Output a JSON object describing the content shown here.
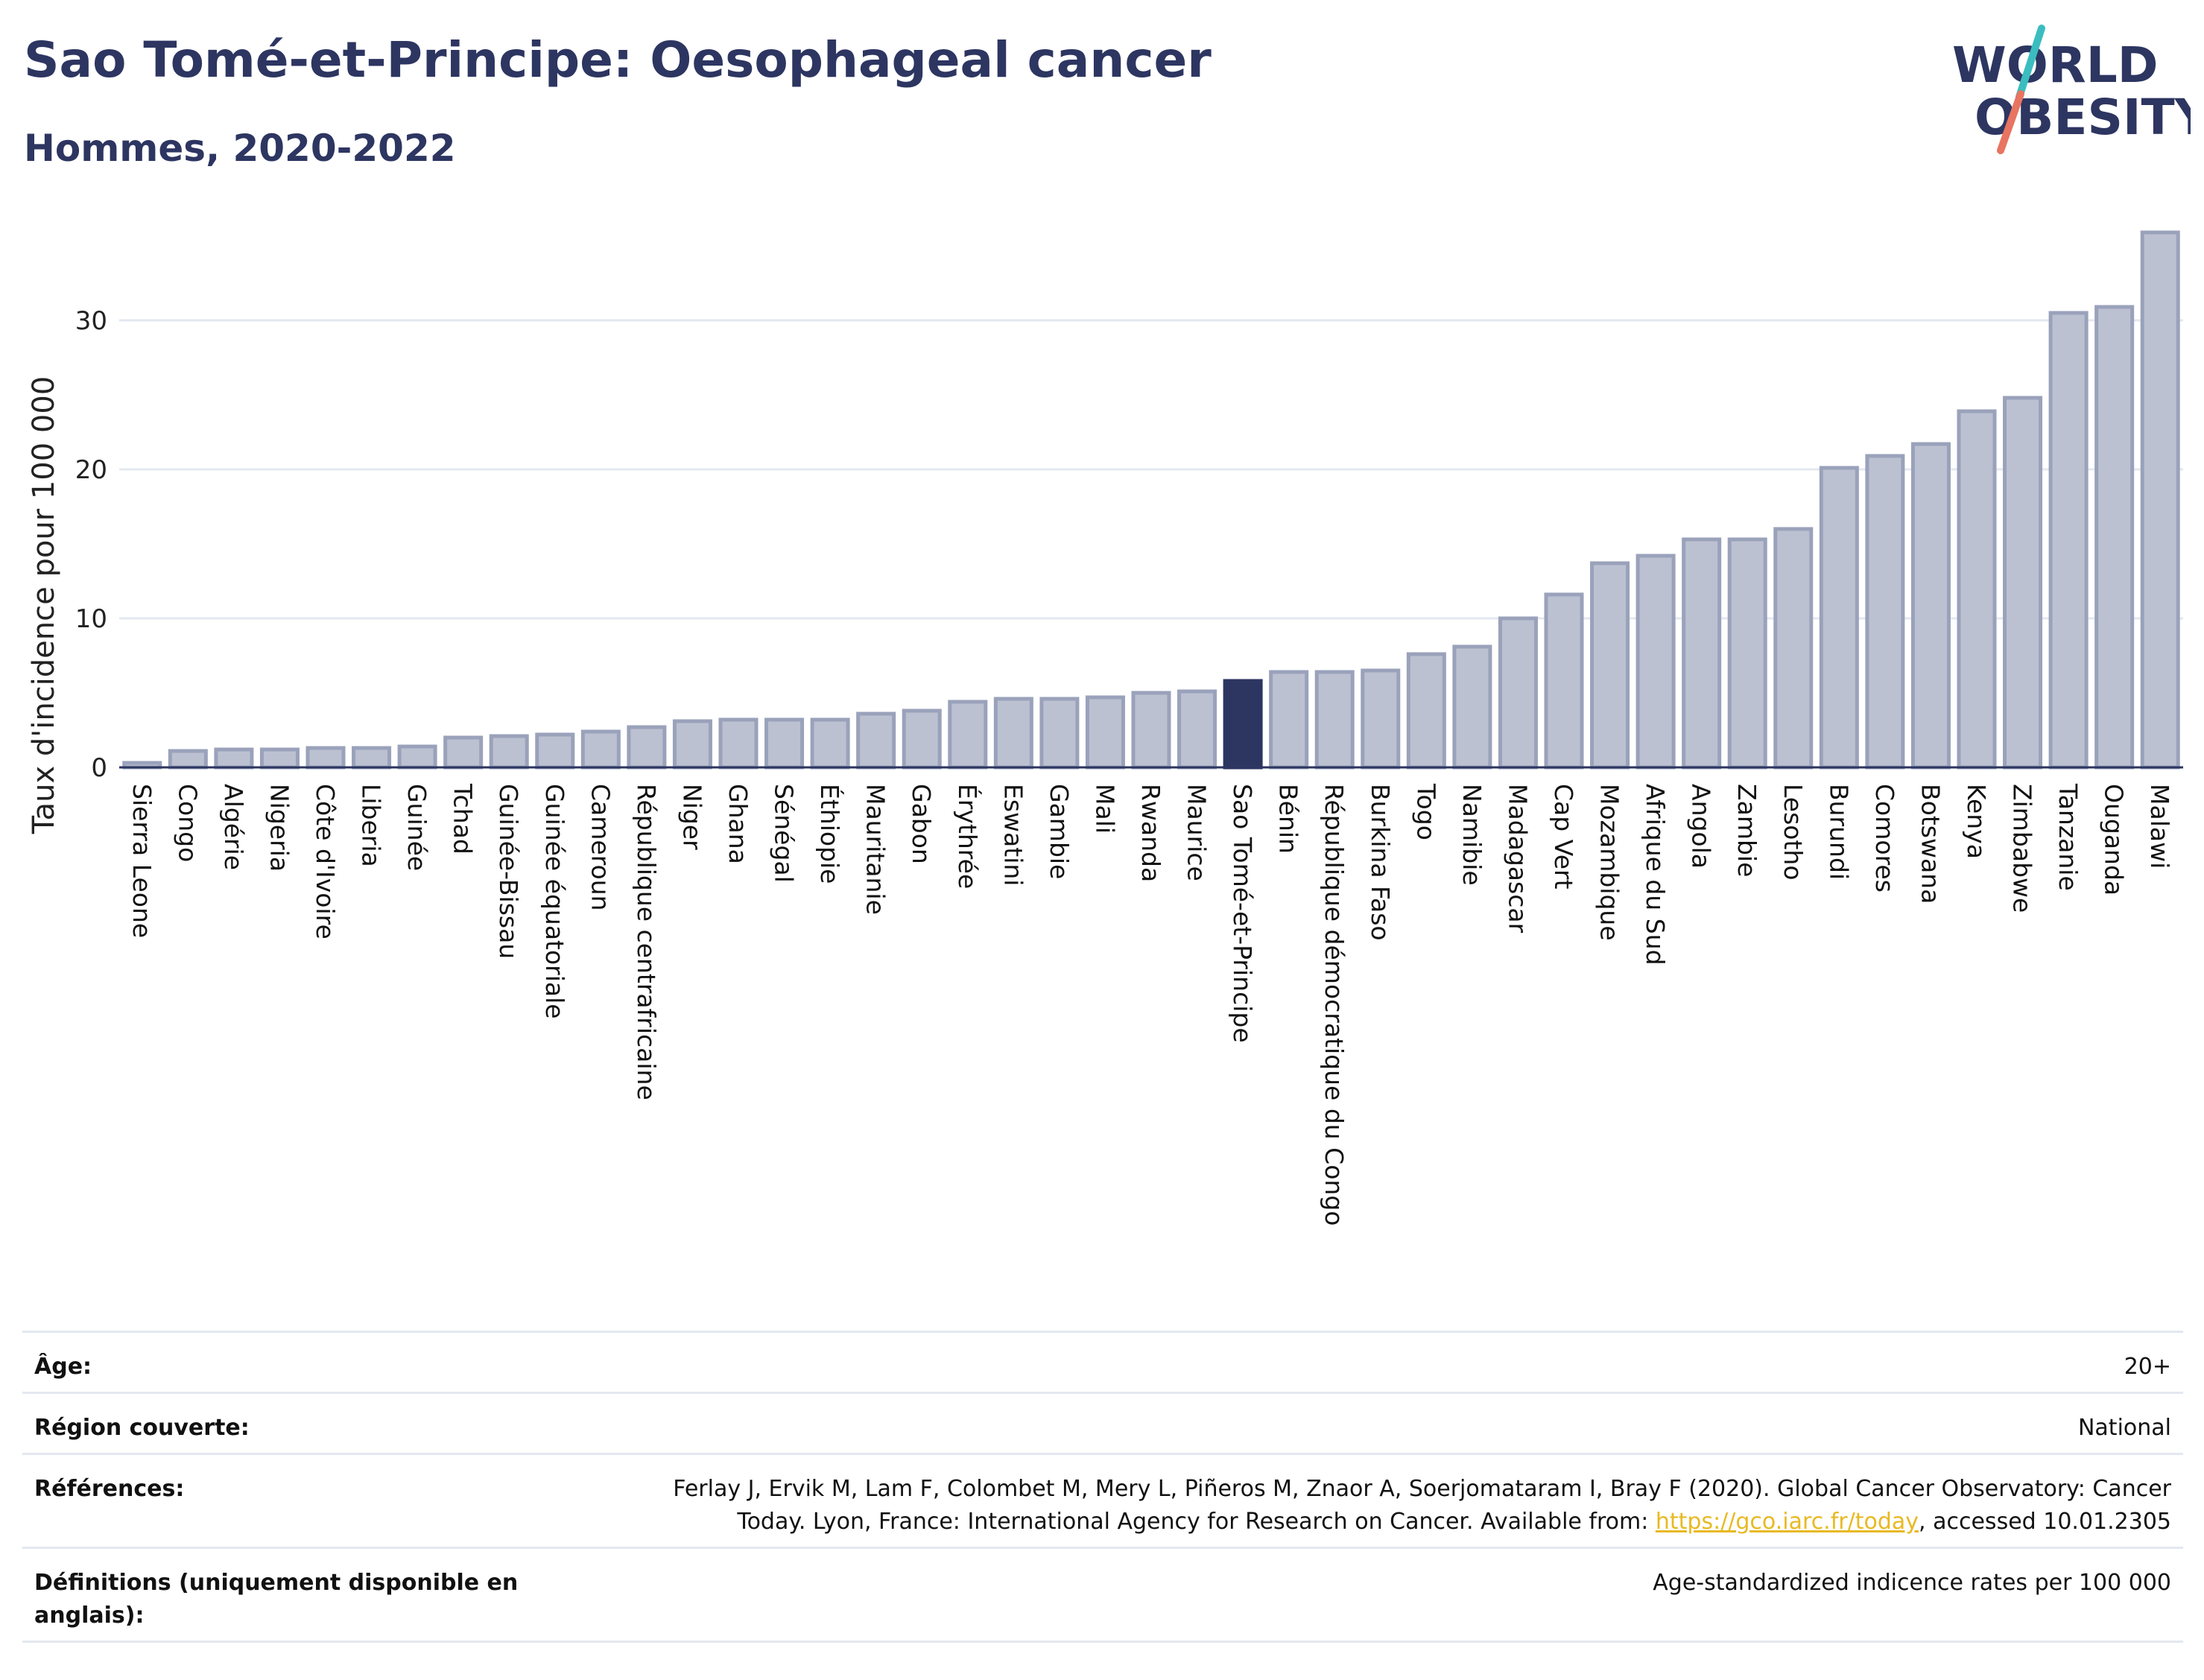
{
  "header": {
    "title": "Sao Tomé-et-Principe: Oesophageal cancer",
    "subtitle": "Hommes, 2020-2022"
  },
  "logo": {
    "line1": "WORLD",
    "line2": "OBESITY",
    "icon": "world-obesity-logo"
  },
  "colors": {
    "bar": "#bcc1d1",
    "bar_stroke": "#9aa2bb",
    "highlight": "#2d3561",
    "text": "#2d3561",
    "grid": "#e3e8f0",
    "link": "#e8b923"
  },
  "chart_data": {
    "type": "bar",
    "ylabel": "Taux d'incidence pour 100 000",
    "xlabel": "",
    "ylim": [
      0,
      36
    ],
    "yticks": [
      0,
      10,
      20,
      30
    ],
    "grid": true,
    "highlight": "Sao Tomé-et-Principe",
    "categories": [
      "Sierra Leone",
      "Congo",
      "Algérie",
      "Nigeria",
      "Côte d'Ivoire",
      "Liberia",
      "Guinée",
      "Tchad",
      "Guinée-Bissau",
      "Guinée équatoriale",
      "Cameroun",
      "République centrafricaine",
      "Niger",
      "Ghana",
      "Sénégal",
      "Éthiopie",
      "Mauritanie",
      "Gabon",
      "Érythrée",
      "Eswatini",
      "Gambie",
      "Mali",
      "Rwanda",
      "Maurice",
      "Sao Tomé-et-Principe",
      "Bénin",
      "République démocratique du Congo",
      "Burkina Faso",
      "Togo",
      "Namibie",
      "Madagascar",
      "Cap Vert",
      "Mozambique",
      "Afrique du Sud",
      "Angola",
      "Zambie",
      "Lesotho",
      "Burundi",
      "Comores",
      "Botswana",
      "Kenya",
      "Zimbabwe",
      "Tanzanie",
      "Ouganda",
      "Malawi"
    ],
    "values": [
      0.3,
      1.1,
      1.2,
      1.2,
      1.3,
      1.3,
      1.4,
      2.0,
      2.1,
      2.2,
      2.4,
      2.7,
      3.1,
      3.2,
      3.2,
      3.2,
      3.6,
      3.8,
      4.4,
      4.6,
      4.6,
      4.7,
      5.0,
      5.1,
      5.8,
      6.4,
      6.4,
      6.5,
      7.6,
      8.1,
      10.0,
      11.6,
      13.7,
      14.2,
      15.3,
      15.3,
      16.0,
      20.1,
      20.9,
      21.7,
      23.9,
      24.8,
      30.5,
      30.9,
      35.9
    ]
  },
  "info": {
    "rows": [
      {
        "key": "Âge:",
        "value": "20+"
      },
      {
        "key": "Région couverte:",
        "value": "National"
      },
      {
        "key": "Références:",
        "value_line1": "Ferlay J, Ervik M, Lam F, Colombet M, Mery L, Piñeros M, Znaor A, Soerjomataram I, Bray F (2020). Global Cancer Observatory: Cancer",
        "value_pre": "Today. Lyon, France: International Agency for Research on Cancer. Available from: ",
        "link": "https://gco.iarc.fr/today",
        "value_post": ", accessed 10.01.2305"
      },
      {
        "key": "Définitions (uniquement disponible en anglais):",
        "value": "Age-standardized indicence rates per 100 000"
      }
    ]
  }
}
